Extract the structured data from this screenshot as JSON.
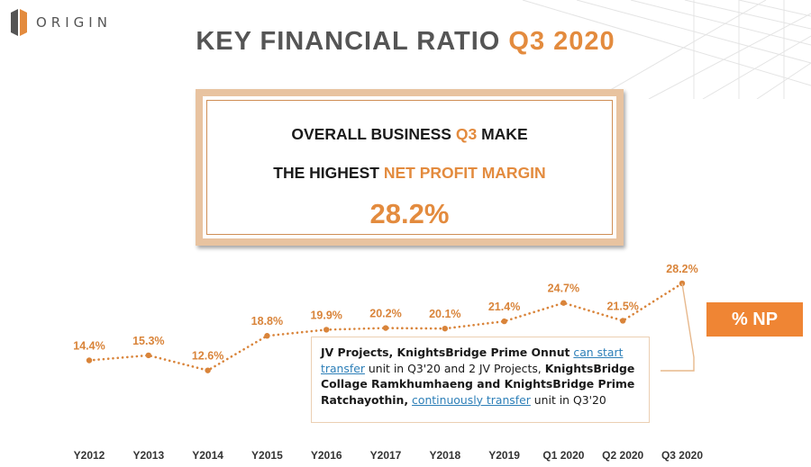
{
  "brand": {
    "name": "ORIGIN"
  },
  "headline": {
    "main": "KEY FINANCIAL RATIO",
    "accent": "Q3 2020"
  },
  "callout": {
    "line1": {
      "before": "OVERALL BUSINESS",
      "accent": "Q3",
      "after": "MAKE"
    },
    "line2": {
      "before": "THE HIGHEST",
      "accent": "NET PROFIT MARGIN"
    },
    "value": "28.2%"
  },
  "badge": {
    "label": "% NP"
  },
  "note": {
    "p1": "JV Projects, KnightsBridge Prime Onnut",
    "u1": "can start transfer",
    "p2": "unit in Q3'20 and 2 JV Projects,",
    "p3": "KnightsBridge Collage Ramkhumhaeng and KnightsBridge Prime Ratchayothin,",
    "u2": "continuously transfer",
    "p4": "unit in Q3'20"
  },
  "colors": {
    "accent": "#e38b3e",
    "badge": "#ef8534",
    "line": "#d9843a",
    "frame": "#e8c3a0"
  },
  "chart_data": {
    "type": "line",
    "categories": [
      "Y2012",
      "Y2013",
      "Y2014",
      "Y2015",
      "Y2016",
      "Y2017",
      "Y2018",
      "Y2019",
      "Q1 2020",
      "Q2 2020",
      "Q3 2020"
    ],
    "series": [
      {
        "name": "% NP",
        "values": [
          14.4,
          15.3,
          12.6,
          18.8,
          19.9,
          20.2,
          20.1,
          21.4,
          24.7,
          21.5,
          28.2
        ],
        "labels": [
          "14.4%",
          "15.3%",
          "12.6%",
          "18.8%",
          "19.9%",
          "20.2%",
          "20.1%",
          "21.4%",
          "24.7%",
          "21.5%",
          "28.2%"
        ]
      }
    ],
    "grid": false,
    "line_style": "dotted"
  }
}
